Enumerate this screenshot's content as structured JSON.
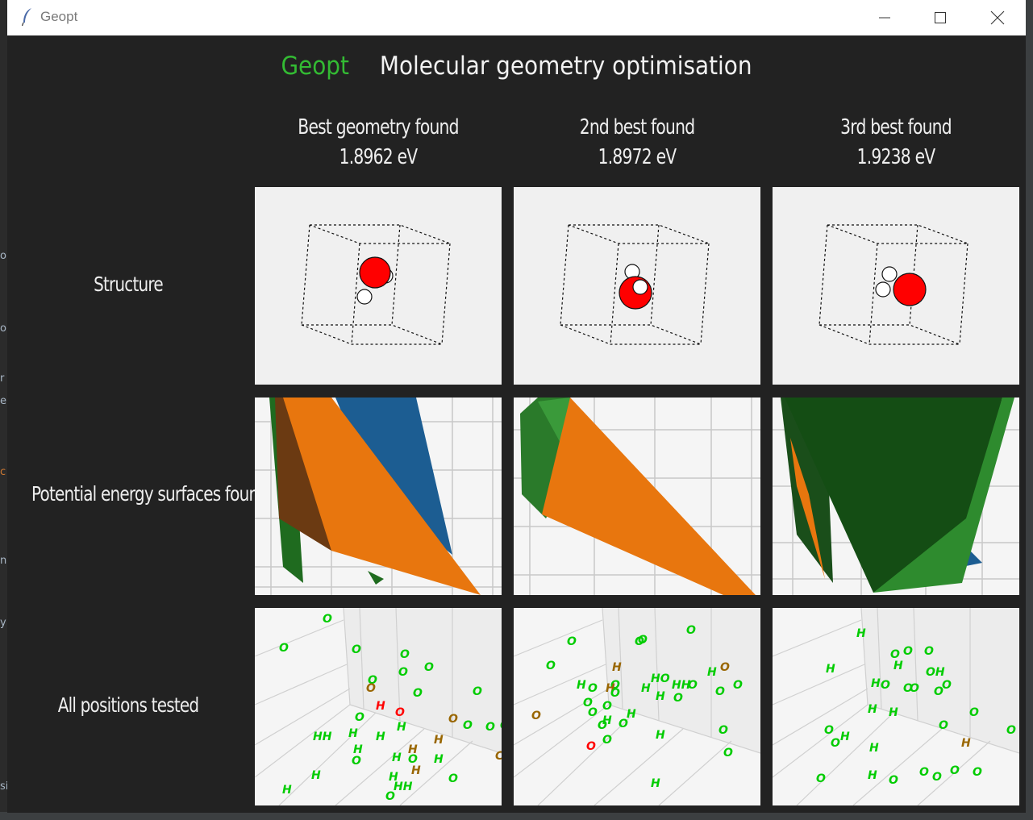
{
  "window": {
    "title": "Geopt",
    "minimize_label": "Minimize",
    "maximize_label": "Maximize",
    "close_label": "Close"
  },
  "header": {
    "brand": "Geopt",
    "subtitle": "Molecular geometry optimisation"
  },
  "columns": [
    {
      "heading": "Best geometry found",
      "energy": "1.8962 eV"
    },
    {
      "heading": "2nd best found",
      "energy": "1.8972 eV"
    },
    {
      "heading": "3rd best found",
      "energy": "1.9238 eV"
    }
  ],
  "rows": [
    {
      "label": "Structure"
    },
    {
      "label": "Potential energy surfaces found"
    },
    {
      "label": "All positions tested"
    }
  ],
  "colors": {
    "oxygen": "#ff0000",
    "hydrogen": "#ffffff",
    "tested_good": "#00cc00",
    "tested_mid": "#996600",
    "tested_bad": "#ff0000",
    "surface_orange": "#e8760e",
    "surface_blue": "#1c5d92",
    "surface_green": "#2a8a2a"
  },
  "positions_panels": [
    {
      "labels": [
        {
          "t": "O",
          "c": "g"
        },
        {
          "t": "O",
          "c": "g"
        },
        {
          "t": "O",
          "c": "g"
        },
        {
          "t": "O",
          "c": "g"
        },
        {
          "t": "O",
          "c": "g"
        },
        {
          "t": "O",
          "c": "g"
        },
        {
          "t": "O",
          "c": "g"
        },
        {
          "t": "O",
          "c": "m"
        },
        {
          "t": "O",
          "c": "g"
        },
        {
          "t": "H",
          "c": "r"
        },
        {
          "t": "O",
          "c": "r"
        },
        {
          "t": "O",
          "c": "g"
        },
        {
          "t": "O",
          "c": "g"
        },
        {
          "t": "H",
          "c": "g"
        },
        {
          "t": "O",
          "c": "m"
        },
        {
          "t": "O",
          "c": "g"
        },
        {
          "t": "O",
          "c": "g"
        },
        {
          "t": "O",
          "c": "g"
        },
        {
          "t": "HH",
          "c": "g"
        },
        {
          "t": "H",
          "c": "g"
        },
        {
          "t": "H",
          "c": "g"
        },
        {
          "t": "H",
          "c": "m"
        },
        {
          "t": "H",
          "c": "g"
        },
        {
          "t": "H",
          "c": "m"
        },
        {
          "t": "O",
          "c": "g"
        },
        {
          "t": "H",
          "c": "g"
        },
        {
          "t": "O",
          "c": "g"
        },
        {
          "t": "H",
          "c": "g"
        },
        {
          "t": "H",
          "c": "m"
        },
        {
          "t": "C",
          "c": "m"
        },
        {
          "t": "H",
          "c": "g"
        },
        {
          "t": "H",
          "c": "g"
        },
        {
          "t": "HH",
          "c": "g"
        },
        {
          "t": "O",
          "c": "g"
        },
        {
          "t": "H",
          "c": "g"
        },
        {
          "t": "O",
          "c": "g"
        }
      ]
    },
    {
      "labels": [
        {
          "t": "O",
          "c": "g"
        },
        {
          "t": "O",
          "c": "g"
        },
        {
          "t": "O",
          "c": "g"
        },
        {
          "t": "O",
          "c": "g"
        },
        {
          "t": "O",
          "c": "g"
        },
        {
          "t": "H",
          "c": "m"
        },
        {
          "t": "O",
          "c": "g"
        },
        {
          "t": "H",
          "c": "g"
        },
        {
          "t": "H",
          "c": "m"
        },
        {
          "t": "O",
          "c": "g"
        },
        {
          "t": "HO",
          "c": "g"
        },
        {
          "t": "H",
          "c": "g"
        },
        {
          "t": "O",
          "c": "m"
        },
        {
          "t": "O",
          "c": "g"
        },
        {
          "t": "O",
          "c": "g"
        },
        {
          "t": "O",
          "c": "g"
        },
        {
          "t": "H",
          "c": "g"
        },
        {
          "t": "HH",
          "c": "g"
        },
        {
          "t": "O",
          "c": "g"
        },
        {
          "t": "O",
          "c": "g"
        },
        {
          "t": "O",
          "c": "g"
        },
        {
          "t": "O",
          "c": "m"
        },
        {
          "t": "H",
          "c": "g"
        },
        {
          "t": "O",
          "c": "g"
        },
        {
          "t": "O",
          "c": "g"
        },
        {
          "t": "H",
          "c": "g"
        },
        {
          "t": "O",
          "c": "g"
        },
        {
          "t": "O",
          "c": "g"
        },
        {
          "t": "H",
          "c": "g"
        },
        {
          "t": "O",
          "c": "g"
        },
        {
          "t": "O",
          "c": "r"
        },
        {
          "t": "H",
          "c": "g"
        },
        {
          "t": "O",
          "c": "g"
        },
        {
          "t": "H",
          "c": "g"
        },
        {
          "t": "O",
          "c": "g"
        }
      ]
    },
    {
      "labels": [
        {
          "t": "H",
          "c": "g"
        },
        {
          "t": "O",
          "c": "g"
        },
        {
          "t": "O",
          "c": "g"
        },
        {
          "t": "O",
          "c": "g"
        },
        {
          "t": "H",
          "c": "g"
        },
        {
          "t": "H",
          "c": "g"
        },
        {
          "t": "OH",
          "c": "g"
        },
        {
          "t": "H",
          "c": "g"
        },
        {
          "t": "O",
          "c": "g"
        },
        {
          "t": "O",
          "c": "g"
        },
        {
          "t": "H",
          "c": "g"
        },
        {
          "t": "O",
          "c": "g"
        },
        {
          "t": "O",
          "c": "g"
        },
        {
          "t": "O",
          "c": "g"
        },
        {
          "t": "H",
          "c": "g"
        },
        {
          "t": "O",
          "c": "g"
        },
        {
          "t": "O",
          "c": "g"
        },
        {
          "t": "O",
          "c": "g"
        },
        {
          "t": "H",
          "c": "g"
        },
        {
          "t": "O",
          "c": "g"
        },
        {
          "t": "O",
          "c": "g"
        },
        {
          "t": "H",
          "c": "g"
        },
        {
          "t": "H",
          "c": "m"
        },
        {
          "t": "O",
          "c": "g"
        },
        {
          "t": "O",
          "c": "g"
        },
        {
          "t": "H",
          "c": "g"
        },
        {
          "t": "O",
          "c": "g"
        },
        {
          "t": "O",
          "c": "g"
        },
        {
          "t": "O",
          "c": "g"
        },
        {
          "t": "O",
          "c": "g"
        }
      ]
    }
  ]
}
